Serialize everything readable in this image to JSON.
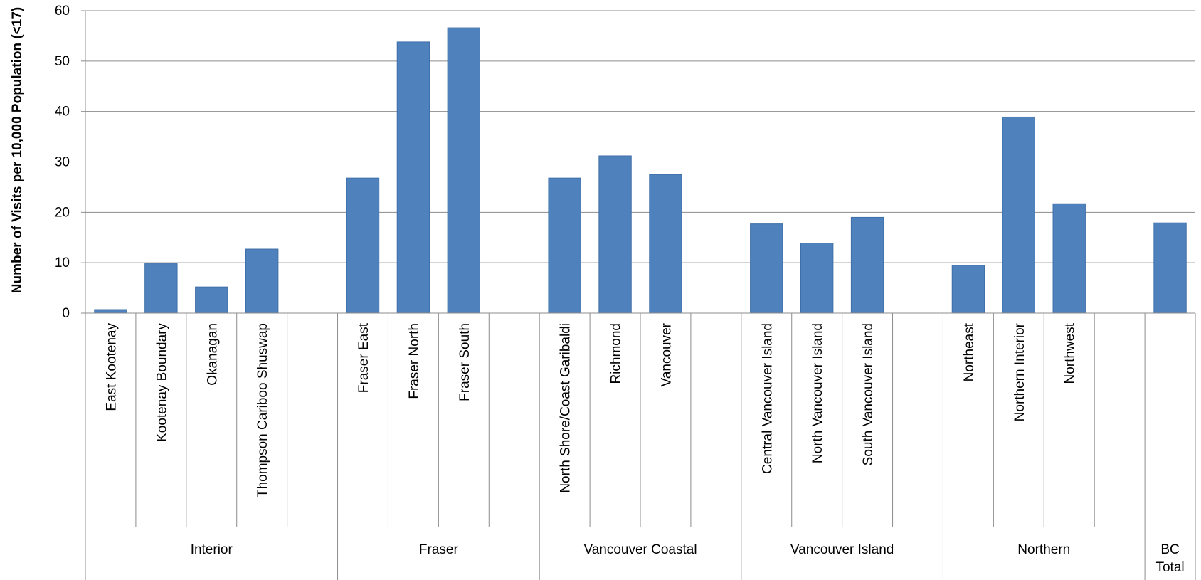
{
  "chart_data": {
    "type": "bar",
    "title": "",
    "xlabel": "",
    "ylabel": "Number of Visits per 10,000 Population (<17)",
    "ylim": [
      0,
      60
    ],
    "yticks": [
      0,
      10,
      20,
      30,
      40,
      50,
      60
    ],
    "grid": true,
    "legend": "none",
    "bar_color": "#4f81bd",
    "groups": [
      {
        "name": "Interior",
        "categories": [
          "East Kootenay",
          "Kootenay Boundary",
          "Okanagan",
          "Thompson Cariboo Shuswap",
          ""
        ],
        "values": [
          0.7,
          9.8,
          5.2,
          12.7,
          null
        ]
      },
      {
        "name": "Fraser",
        "categories": [
          "Fraser East",
          "Fraser North",
          "Fraser South",
          ""
        ],
        "values": [
          26.8,
          53.8,
          56.6,
          null
        ]
      },
      {
        "name": "Vancouver Coastal",
        "categories": [
          "North Shore/Coast Garibaldi",
          "Richmond",
          "Vancouver",
          ""
        ],
        "values": [
          26.8,
          31.2,
          27.5,
          null
        ]
      },
      {
        "name": "Vancouver Island",
        "categories": [
          "Central Vancouver Island",
          "North Vancouver Island",
          "South Vancouver Island",
          ""
        ],
        "values": [
          17.7,
          13.9,
          19.0,
          null
        ]
      },
      {
        "name": "Northern",
        "categories": [
          "Northeast",
          "Northern Interior",
          "Northwest",
          ""
        ],
        "values": [
          9.5,
          38.9,
          21.7,
          null
        ]
      },
      {
        "name": "BC\nTotal",
        "categories": [
          ""
        ],
        "values": [
          17.9
        ]
      }
    ]
  }
}
